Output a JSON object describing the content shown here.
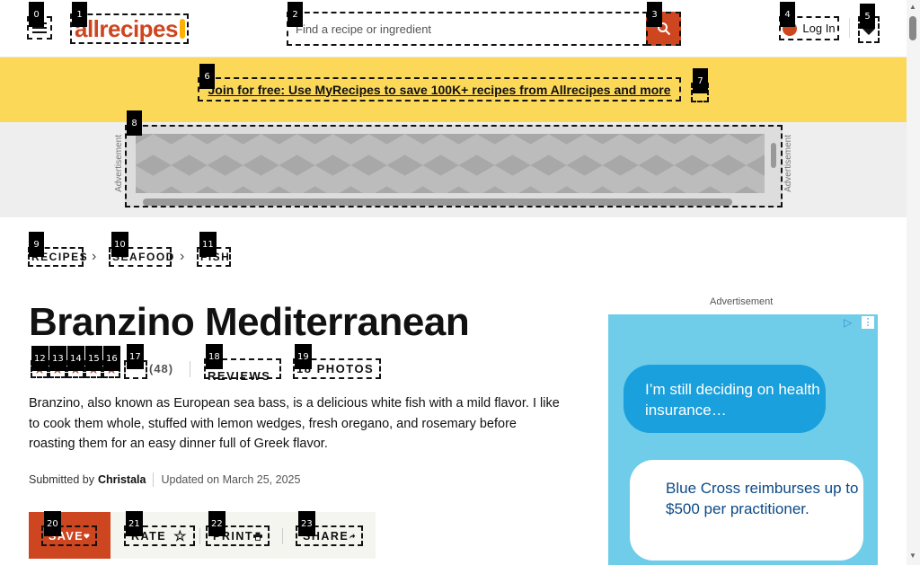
{
  "header": {
    "logo_text": "allrecipes",
    "search_placeholder": "Find a recipe or ingredient",
    "login_label": "Log In"
  },
  "banner": {
    "join_text": "Join for free: Use MyRecipes to save 100K+ recipes from Allrecipes and more"
  },
  "ad": {
    "vertical_label": "Advertisement",
    "side_label": "Advertisement",
    "bubble1": "I’m still deciding on health insurance…",
    "bubble2": "Blue Cross reimburses up to $500 per practitioner."
  },
  "breadcrumb": [
    "RECIPES",
    "SEAFOOD",
    "FISH"
  ],
  "recipe": {
    "title": "Branzino Mediterranean",
    "rating": 5,
    "rating_count": "(48)",
    "reviews_label": "37 REVIEWS",
    "photos_label": "18 PHOTOS",
    "description": "Branzino, also known as European sea bass, is a delicious white fish with a mild flavor. I like to cook them whole, stuffed with lemon wedges, fresh oregano, and rosemary before roasting them for an easy dinner full of Greek flavor.",
    "submitted_prefix": "Submitted by",
    "author": "Christala",
    "updated": "Updated on March 25, 2025"
  },
  "actions": {
    "save": "SAVE",
    "rate": "RATE",
    "print": "PRINT",
    "share": "SHARE"
  },
  "colors": {
    "brand": "#ce4620",
    "banner": "#fcd859"
  },
  "markers": [
    "0",
    "1",
    "2",
    "3",
    "4",
    "5",
    "6",
    "7",
    "8",
    "9",
    "10",
    "11",
    "12",
    "13",
    "14",
    "15",
    "16",
    "17",
    "18",
    "19",
    "20",
    "21",
    "22",
    "23"
  ]
}
